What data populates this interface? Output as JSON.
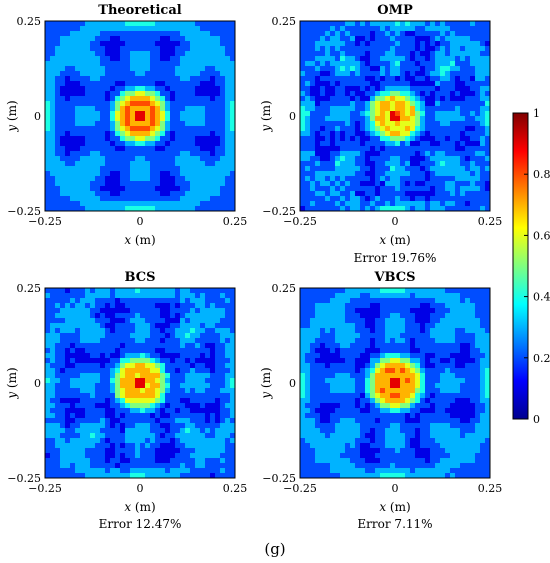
{
  "figure_label": "(g)",
  "colors": {
    "low": "#00008f",
    "high": "#800000",
    "contour_line": "#000000"
  },
  "colorbar": {
    "colormap": "jet",
    "range": [
      0,
      1
    ],
    "ticks": [
      "0",
      "0.2",
      "0.4",
      "0.6",
      "0.8",
      "1"
    ],
    "location": "right"
  },
  "chart_data": [
    {
      "type": "heatmap",
      "style": "filled-contour",
      "name": "theoretical",
      "title": "Theoretical",
      "xlabel_var": "x",
      "xlabel_unit": " (m)",
      "ylabel_var": "y",
      "ylabel_unit": " (m)",
      "xlim": [
        -0.25,
        0.25
      ],
      "ylim": [
        -0.25,
        0.25
      ],
      "xticks": [
        "−0.25",
        "0",
        "0.25"
      ],
      "yticks": [
        "0.25",
        "0",
        "−0.25"
      ],
      "peak": {
        "x": 0,
        "y": 0,
        "value": 1.0
      },
      "ring_peak_value": 0.68,
      "error": "",
      "noise": 0.0
    },
    {
      "type": "heatmap",
      "style": "filled-contour",
      "name": "omp",
      "title": "OMP",
      "xlabel_var": "x",
      "xlabel_unit": " (m)",
      "ylabel_var": "y",
      "ylabel_unit": " (m)",
      "xlim": [
        -0.25,
        0.25
      ],
      "ylim": [
        -0.25,
        0.25
      ],
      "xticks": [
        "−0.25",
        "0",
        "0.25"
      ],
      "yticks": [
        "0.25",
        "0",
        "−0.25"
      ],
      "peak": {
        "x": 0,
        "y": 0,
        "value": 1.0
      },
      "ring_peak_value": 0.55,
      "error": "Error 19.76%",
      "noise": 0.13
    },
    {
      "type": "heatmap",
      "style": "filled-contour",
      "name": "bcs",
      "title": "BCS",
      "xlabel_var": "x",
      "xlabel_unit": " (m)",
      "ylabel_var": "y",
      "ylabel_unit": " (m)",
      "xlim": [
        -0.25,
        0.25
      ],
      "ylim": [
        -0.25,
        0.25
      ],
      "xticks": [
        "−0.25",
        "0",
        "0.25"
      ],
      "yticks": [
        "0.25",
        "0",
        "−0.25"
      ],
      "peak": {
        "x": 0,
        "y": 0,
        "value": 1.0
      },
      "ring_peak_value": 0.6,
      "error": "Error 12.47%",
      "noise": 0.09
    },
    {
      "type": "heatmap",
      "style": "filled-contour",
      "name": "vbcs",
      "title": "VBCS",
      "xlabel_var": "x",
      "xlabel_unit": " (m)",
      "ylabel_var": "y",
      "ylabel_unit": " (m)",
      "xlim": [
        -0.25,
        0.25
      ],
      "ylim": [
        -0.25,
        0.25
      ],
      "xticks": [
        "−0.25",
        "0",
        "0.25"
      ],
      "yticks": [
        "0.25",
        "0",
        "−0.25"
      ],
      "peak": {
        "x": 0,
        "y": 0,
        "value": 1.0
      },
      "ring_peak_value": 0.66,
      "error": "Error 7.11%",
      "noise": 0.05
    }
  ]
}
